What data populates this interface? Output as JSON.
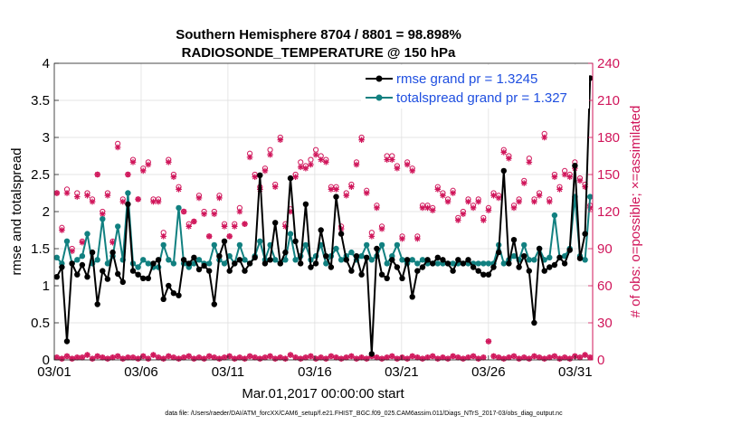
{
  "chart_data": {
    "type": "line",
    "title": "Southern Hemisphere 8704 / 8801 = 98.898%",
    "subtitle": "RADIOSONDE_TEMPERATURE @ 150 hPa",
    "xlabel": "Mar.01,2017 00:00:00 start",
    "ylabel": "rmse and totalspread",
    "y2label": "# of obs: o=possible; ×=assimilated",
    "footnote": "data file: /Users/raeder/DAI/ATM_forcXX/CAM6_setup/f.e21.FHIST_BGC.f09_025.CAM6assim.011/Diags_NTrS_2017-03/obs_diag_output.nc",
    "x_ticks": [
      "03/01",
      "03/06",
      "03/11",
      "03/16",
      "03/21",
      "03/26",
      "03/31"
    ],
    "x_tick_days": [
      1,
      6,
      11,
      16,
      21,
      26,
      31
    ],
    "xlim": [
      1,
      32
    ],
    "ylim": [
      0,
      4
    ],
    "y_ticks": [
      "0",
      "0.5",
      "1",
      "1.5",
      "2",
      "2.5",
      "3",
      "3.5",
      "4"
    ],
    "y2lim": [
      0,
      240
    ],
    "y2_ticks": [
      "0",
      "30",
      "60",
      "90",
      "120",
      "150",
      "180",
      "210",
      "240"
    ],
    "colors": {
      "rmse": "#000000",
      "totalspread": "#118080",
      "obs": "#d0155a",
      "legend_text": "#1f4fe0",
      "right_axis": "#d0155a"
    },
    "legend_position": "top-right",
    "series": [
      {
        "name": "rmse grand pr = 1.3245",
        "values": [
          1.12,
          1.25,
          0.25,
          1.3,
          1.15,
          1.28,
          1.12,
          1.45,
          0.75,
          1.2,
          1.09,
          1.45,
          1.16,
          1.05,
          2.1,
          1.2,
          1.15,
          1.1,
          1.1,
          1.3,
          1.35,
          0.82,
          1.0,
          0.9,
          0.87,
          1.35,
          1.3,
          1.38,
          1.22,
          1.27,
          1.2,
          0.75,
          1.4,
          1.6,
          1.2,
          1.3,
          1.35,
          1.2,
          1.3,
          1.38,
          2.49,
          1.3,
          1.35,
          1.85,
          1.3,
          1.45,
          2.45,
          1.6,
          1.3,
          2.1,
          1.25,
          1.3,
          1.75,
          1.4,
          1.25,
          2.2,
          1.7,
          1.35,
          1.2,
          1.4,
          1.15,
          1.38,
          0.08,
          1.5,
          1.15,
          1.1,
          1.35,
          1.25,
          1.1,
          1.35,
          0.85,
          1.2,
          1.25,
          1.35,
          1.3,
          1.38,
          1.35,
          1.3,
          1.2,
          1.35,
          1.3,
          1.35,
          1.25,
          1.2,
          1.15,
          1.15,
          1.25,
          1.45,
          2.55,
          1.3,
          1.62,
          1.25,
          1.4,
          1.2,
          0.5,
          1.5,
          1.2,
          1.25,
          1.28,
          1.38,
          1.3,
          1.48,
          2.62,
          1.37,
          1.7,
          3.8
        ]
      },
      {
        "name": "totalspread grand pr = 1.327",
        "values": [
          1.38,
          1.3,
          1.6,
          1.3,
          1.35,
          1.4,
          1.7,
          1.3,
          1.35,
          1.9,
          1.3,
          1.4,
          1.8,
          1.35,
          2.25,
          1.3,
          1.25,
          1.35,
          1.3,
          1.25,
          1.25,
          1.55,
          1.35,
          1.3,
          2.05,
          1.3,
          1.25,
          1.3,
          1.35,
          1.3,
          1.3,
          1.55,
          1.35,
          1.3,
          1.4,
          1.3,
          1.55,
          1.35,
          1.3,
          1.4,
          1.6,
          1.35,
          1.55,
          1.35,
          1.3,
          1.35,
          1.7,
          1.35,
          1.4,
          1.55,
          1.35,
          1.4,
          1.55,
          1.3,
          1.4,
          1.5,
          1.35,
          1.4,
          1.45,
          1.35,
          1.4,
          1.55,
          1.35,
          1.4,
          1.55,
          1.3,
          1.4,
          1.55,
          1.35,
          1.3,
          1.35,
          1.3,
          1.35,
          1.3,
          1.3,
          1.3,
          1.3,
          1.3,
          1.3,
          1.3,
          1.3,
          1.3,
          1.3,
          1.3,
          1.3,
          1.3,
          1.3,
          1.55,
          1.3,
          1.35,
          1.4,
          1.35,
          1.55,
          1.35,
          1.35,
          1.5,
          1.35,
          1.38,
          1.95,
          1.38,
          1.4,
          1.5,
          2.2,
          1.4,
          1.35,
          2.2
        ]
      }
    ],
    "obs_possible": [
      135,
      107,
      138,
      90,
      135,
      96,
      135,
      130,
      150,
      120,
      135,
      96,
      175,
      130,
      150,
      162,
      130,
      155,
      160,
      130,
      130,
      103,
      162,
      150,
      140,
      120,
      110,
      112,
      133,
      120,
      100,
      120,
      133,
      110,
      100,
      110,
      123,
      110,
      167,
      150,
      140,
      155,
      170,
      142,
      180,
      110,
      122,
      150,
      160,
      157,
      162,
      170,
      165,
      162,
      140,
      140,
      108,
      135,
      142,
      160,
      180,
      137,
      103,
      125,
      108,
      165,
      165,
      157,
      100,
      160,
      155,
      100,
      125,
      125,
      123,
      140,
      135,
      130,
      137,
      115,
      120,
      130,
      125,
      130,
      115,
      123,
      135,
      133,
      170,
      165,
      125,
      130,
      145,
      163,
      130,
      135,
      183,
      130,
      150,
      140,
      153,
      150,
      160,
      147,
      142,
      125
    ],
    "obs_assimilated": [
      135,
      105,
      135,
      88,
      132,
      95,
      133,
      128,
      150,
      118,
      133,
      95,
      172,
      128,
      150,
      160,
      130,
      153,
      158,
      128,
      128,
      100,
      160,
      148,
      138,
      120,
      108,
      112,
      131,
      118,
      100,
      118,
      131,
      108,
      100,
      108,
      120,
      110,
      164,
      148,
      138,
      153,
      166,
      140,
      178,
      108,
      120,
      148,
      156,
      155,
      158,
      166,
      162,
      160,
      138,
      138,
      106,
      133,
      140,
      158,
      178,
      135,
      100,
      123,
      106,
      162,
      162,
      155,
      98,
      158,
      153,
      98,
      123,
      123,
      121,
      138,
      133,
      128,
      135,
      113,
      118,
      128,
      123,
      128,
      113,
      121,
      133,
      131,
      168,
      163,
      123,
      128,
      143,
      160,
      128,
      133,
      180,
      128,
      148,
      138,
      150,
      148,
      155,
      145,
      140,
      123
    ],
    "obs_bottom": [
      2,
      1,
      3,
      1,
      2,
      2,
      4,
      1,
      3,
      2,
      1,
      2,
      3,
      1,
      2,
      2,
      1,
      3,
      1,
      4,
      2,
      1,
      3,
      2,
      1,
      2,
      3,
      1,
      2,
      1,
      3,
      2,
      1,
      2,
      3,
      1,
      2,
      1,
      3,
      2,
      1,
      2,
      3,
      1,
      2,
      1,
      4,
      2,
      1,
      2,
      3,
      1,
      2,
      1,
      3,
      2,
      1,
      2,
      3,
      1,
      2,
      1,
      3,
      2,
      1,
      2,
      3,
      1,
      2,
      1,
      3,
      2,
      1,
      2,
      3,
      1,
      2,
      1,
      3,
      2,
      1,
      2,
      3,
      1,
      2,
      15,
      3,
      2,
      1,
      2,
      3,
      1,
      2,
      1,
      3,
      2,
      1,
      2,
      3,
      1,
      2,
      1,
      3,
      2,
      4,
      2
    ]
  }
}
